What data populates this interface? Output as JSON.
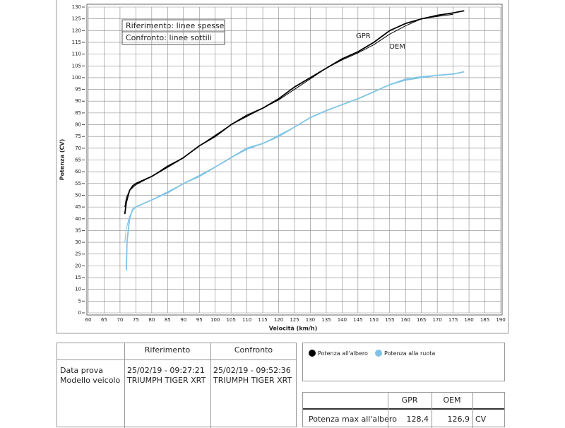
{
  "chart_data": {
    "type": "line",
    "x_label": "Velocità (km/h)",
    "y_label": "Potenza (CV)",
    "xlim": [
      60,
      190
    ],
    "ylim": [
      0,
      130
    ],
    "xticks": [
      60,
      65,
      70,
      75,
      80,
      85,
      90,
      95,
      100,
      105,
      110,
      115,
      120,
      125,
      130,
      135,
      140,
      145,
      150,
      155,
      160,
      165,
      170,
      175,
      180,
      185,
      190
    ],
    "yticks": [
      0,
      5,
      10,
      15,
      20,
      25,
      30,
      35,
      40,
      45,
      50,
      55,
      60,
      65,
      70,
      75,
      80,
      85,
      90,
      95,
      100,
      105,
      110,
      115,
      120,
      125,
      130
    ],
    "grid": true,
    "note": [
      "Riferimento: linee spesse",
      "Confronto: linee sottili"
    ],
    "annotations": [
      "GPR",
      "OEM"
    ],
    "series": [
      {
        "name": "Potenza all'albero",
        "color": "#000000",
        "reference": {
          "x": [
            71.5,
            72,
            73,
            74,
            75,
            80,
            85,
            90,
            95,
            100,
            105,
            110,
            115,
            120,
            125,
            130,
            135,
            140,
            145,
            150,
            155,
            160,
            165,
            170,
            175,
            178.5
          ],
          "values": [
            42,
            47,
            52,
            54,
            55,
            58,
            62,
            66,
            71,
            75,
            80,
            84,
            87,
            91,
            96,
            100,
            104,
            108,
            111,
            115,
            120,
            123,
            125,
            126.5,
            127.5,
            128.4
          ]
        },
        "comparison": {
          "x": [
            71.5,
            72,
            73,
            75,
            80,
            85,
            90,
            95,
            100,
            105,
            110,
            115,
            120,
            125,
            130,
            135,
            140,
            145,
            150,
            155,
            160,
            165,
            170,
            175
          ],
          "values": [
            45,
            49,
            52,
            54.5,
            58,
            62.5,
            66,
            71,
            75.5,
            80,
            83.5,
            87,
            90.5,
            95,
            99.5,
            104,
            107.5,
            110.5,
            114,
            118.5,
            122,
            125,
            126,
            126.9
          ]
        }
      },
      {
        "name": "Potenza alla ruota",
        "color": "#7ec3e6",
        "reference": {
          "x": [
            72,
            72.2,
            73,
            74,
            75,
            80,
            85,
            90,
            95,
            100,
            105,
            110,
            115,
            120,
            125,
            130,
            135,
            140,
            145,
            150,
            155,
            160,
            165,
            170,
            175,
            178.5
          ],
          "values": [
            18,
            30,
            40,
            44,
            45,
            48,
            51,
            55,
            58,
            62,
            66,
            70,
            72,
            75,
            79,
            83,
            86,
            88.5,
            91,
            94,
            97,
            99,
            100,
            101,
            101.5,
            102.5
          ]
        },
        "comparison": {
          "x": [
            71.5,
            72,
            73,
            74,
            75,
            80,
            85,
            90,
            95,
            100,
            105,
            110,
            115,
            120,
            125,
            130,
            135,
            140,
            145,
            150,
            155,
            160,
            165,
            170,
            175
          ],
          "values": [
            30,
            36,
            41,
            43.5,
            45,
            48,
            51.5,
            55,
            58.5,
            62,
            66,
            69.5,
            72,
            75.5,
            79,
            83,
            86,
            88.5,
            91,
            94,
            97,
            99.5,
            100.5,
            101,
            101.5
          ]
        }
      }
    ]
  },
  "table": {
    "header": [
      "Riferimento",
      "Confronto"
    ],
    "rows": [
      [
        "Data prova",
        "25/02/19 - 09:27:21",
        "25/02/19 - 09:52:36"
      ],
      [
        "Modello veicolo",
        "TRIUMPH TIGER XRT",
        "TRIUMPH TIGER XRT"
      ]
    ]
  },
  "summary": {
    "header": [
      "GPR",
      "OEM"
    ],
    "rows": [
      [
        "Potenza max all'albero",
        "128,4",
        "126,9",
        "CV"
      ]
    ]
  }
}
